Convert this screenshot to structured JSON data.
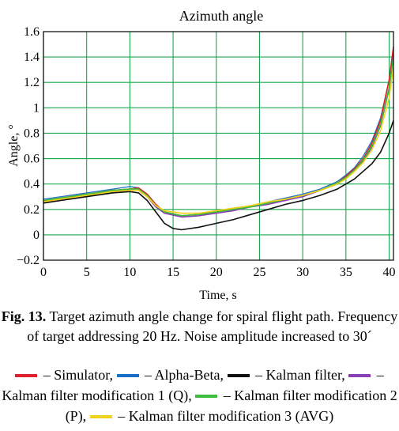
{
  "chart_data": {
    "type": "line",
    "title": "Azimuth angle",
    "xlabel": "Time, s",
    "ylabel": "Angle, °",
    "xlim": [
      0,
      40.5
    ],
    "ylim": [
      -0.2,
      1.6
    ],
    "xticks": [
      "0",
      "5",
      "10",
      "15",
      "20",
      "25",
      "30",
      "35",
      "40"
    ],
    "yticks": [
      "−0.2",
      "0",
      "0.2",
      "0.4",
      "0.6",
      "0.8",
      "1",
      "1.2",
      "1.4",
      "1.6"
    ],
    "grid": true,
    "series": [
      {
        "name": "Simulator",
        "color": "#e0202a",
        "x": [
          0,
          2,
          4,
          6,
          8,
          10,
          11,
          12,
          13,
          14,
          16,
          18,
          20,
          22,
          24,
          26,
          28,
          30,
          32,
          34,
          35,
          36,
          37,
          38,
          39,
          40,
          40.5
        ],
        "y": [
          0.27,
          0.29,
          0.31,
          0.33,
          0.35,
          0.36,
          0.37,
          0.32,
          0.24,
          0.18,
          0.15,
          0.16,
          0.18,
          0.2,
          0.22,
          0.25,
          0.28,
          0.31,
          0.35,
          0.41,
          0.46,
          0.52,
          0.6,
          0.72,
          0.9,
          1.22,
          1.48
        ]
      },
      {
        "name": "Alpha-Beta",
        "color": "#1a6fc4",
        "x": [
          0,
          2,
          4,
          6,
          8,
          10,
          11,
          12,
          13,
          14,
          16,
          18,
          20,
          22,
          24,
          26,
          28,
          30,
          32,
          34,
          35,
          36,
          37,
          38,
          39,
          40,
          40.5
        ],
        "y": [
          0.28,
          0.3,
          0.32,
          0.34,
          0.36,
          0.38,
          0.37,
          0.3,
          0.22,
          0.17,
          0.15,
          0.16,
          0.19,
          0.21,
          0.23,
          0.26,
          0.29,
          0.32,
          0.36,
          0.42,
          0.47,
          0.53,
          0.62,
          0.74,
          0.92,
          1.22,
          1.45
        ]
      },
      {
        "name": "Kalman filter",
        "color": "#111111",
        "x": [
          0,
          2,
          4,
          6,
          8,
          10,
          11,
          12,
          13,
          14,
          15,
          16,
          18,
          20,
          22,
          24,
          26,
          28,
          30,
          32,
          34,
          36,
          38,
          39,
          40,
          40.5
        ],
        "y": [
          0.25,
          0.27,
          0.29,
          0.31,
          0.33,
          0.34,
          0.33,
          0.27,
          0.18,
          0.09,
          0.05,
          0.04,
          0.06,
          0.09,
          0.12,
          0.16,
          0.2,
          0.24,
          0.27,
          0.31,
          0.36,
          0.44,
          0.56,
          0.65,
          0.8,
          0.9
        ]
      },
      {
        "name": "Kalman filter modification  1 (Q)",
        "color": "#8b3fb5",
        "x": [
          0,
          2,
          4,
          6,
          8,
          10,
          11,
          12,
          13,
          14,
          16,
          18,
          20,
          22,
          24,
          26,
          28,
          30,
          32,
          34,
          35,
          36,
          37,
          38,
          39,
          40,
          40.5
        ],
        "y": [
          0.26,
          0.28,
          0.3,
          0.32,
          0.34,
          0.35,
          0.35,
          0.3,
          0.22,
          0.17,
          0.14,
          0.15,
          0.17,
          0.19,
          0.22,
          0.24,
          0.27,
          0.3,
          0.35,
          0.4,
          0.45,
          0.51,
          0.58,
          0.69,
          0.86,
          1.15,
          1.42
        ]
      },
      {
        "name": "Kalman filter modification 2 (P)",
        "color": "#3dbd3d",
        "x": [
          0,
          2,
          4,
          6,
          8,
          10,
          11,
          12,
          13,
          14,
          16,
          18,
          20,
          22,
          24,
          26,
          28,
          30,
          32,
          34,
          35,
          36,
          37,
          38,
          39,
          40,
          40.5
        ],
        "y": [
          0.27,
          0.29,
          0.31,
          0.33,
          0.35,
          0.36,
          0.36,
          0.31,
          0.23,
          0.18,
          0.15,
          0.16,
          0.18,
          0.2,
          0.22,
          0.25,
          0.28,
          0.31,
          0.35,
          0.41,
          0.45,
          0.51,
          0.59,
          0.7,
          0.87,
          1.16,
          1.4
        ]
      },
      {
        "name": "Kalman filter modification 3 (AVG)",
        "color": "#f2d216",
        "x": [
          0,
          2,
          4,
          6,
          8,
          10,
          11,
          12,
          13,
          14,
          16,
          18,
          20,
          22,
          24,
          26,
          28,
          30,
          32,
          34,
          35,
          36,
          37,
          38,
          39,
          40,
          40.5
        ],
        "y": [
          0.26,
          0.28,
          0.3,
          0.32,
          0.34,
          0.35,
          0.35,
          0.3,
          0.23,
          0.19,
          0.17,
          0.17,
          0.19,
          0.21,
          0.23,
          0.26,
          0.28,
          0.31,
          0.35,
          0.4,
          0.44,
          0.5,
          0.57,
          0.67,
          0.82,
          1.08,
          1.32
        ]
      }
    ]
  },
  "caption": {
    "fig_label": "Fig. 13.",
    "text": " Target azimuth angle change for spiral flight path. Frequency of target addressing 20 Hz. Noise amplitude increased to 30´"
  },
  "legend": {
    "items": [
      {
        "swatch_color": "#e0202a",
        "text": " – Simulator, "
      },
      {
        "swatch_color": "#1a6fc4",
        "text": " – Alpha-Beta, "
      },
      {
        "swatch_color": "#111111",
        "text": " – Kalman filter, "
      },
      {
        "swatch_color": "#8b3fb5",
        "text": " – Kalman filter modification  1 (Q), "
      },
      {
        "swatch_color": "#3dbd3d",
        "text": " – Kalman filter modification 2 (P), "
      },
      {
        "swatch_color": "#f2d216",
        "text": " – Kalman filter modification 3 (AVG)"
      }
    ]
  }
}
